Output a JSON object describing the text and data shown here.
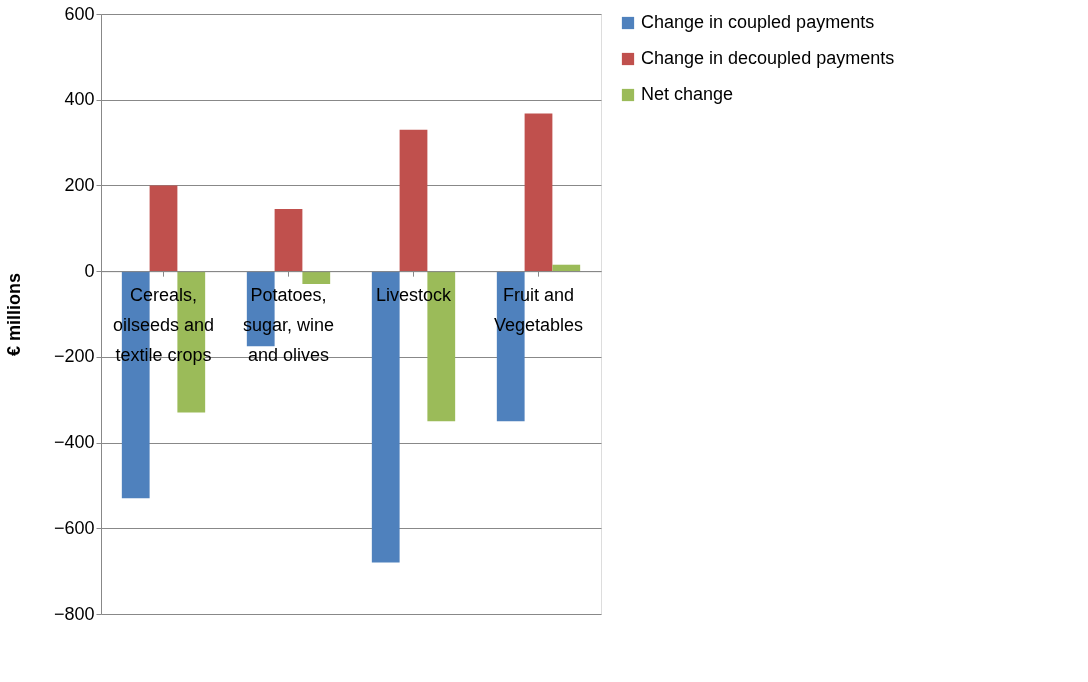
{
  "chart_data": {
    "type": "bar",
    "ylabel": "€ millions",
    "categories": [
      "Cereals, oilseeds and textile crops",
      "Potatoes, sugar, wine and olives",
      "Livestock",
      "Fruit and Vegetables"
    ],
    "series": [
      {
        "name": "Change in coupled payments",
        "color": "#4f81bd",
        "values": [
          -530,
          -175,
          -680,
          -350
        ]
      },
      {
        "name": "Change in decoupled payments",
        "color": "#c0504d",
        "values": [
          200,
          145,
          330,
          368
        ]
      },
      {
        "name": "Net change",
        "color": "#9bbb59",
        "values": [
          -330,
          -30,
          -350,
          15
        ]
      }
    ],
    "ylim": [
      -800,
      600
    ],
    "yticks": [
      -800,
      -600,
      -400,
      -200,
      0,
      200,
      400,
      600
    ],
    "grid": "y",
    "legend": "right"
  }
}
